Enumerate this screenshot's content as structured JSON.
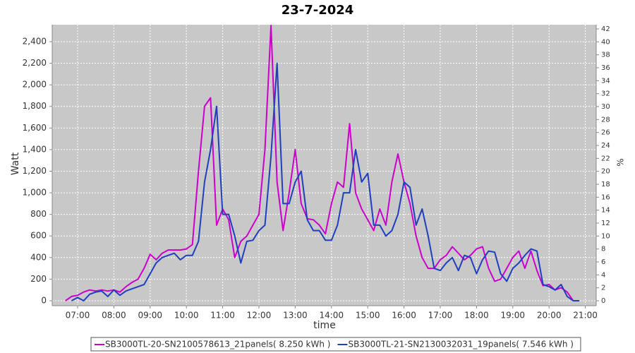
{
  "chart_data": {
    "type": "line",
    "title": "23-7-2024",
    "x_label": "time",
    "y_label": "Watt",
    "y2_label": "%",
    "x": [
      "06:40",
      "06:50",
      "07:00",
      "07:10",
      "07:20",
      "07:30",
      "07:40",
      "07:50",
      "08:00",
      "08:10",
      "08:20",
      "08:30",
      "08:40",
      "08:50",
      "09:00",
      "09:10",
      "09:20",
      "09:30",
      "09:40",
      "09:50",
      "10:00",
      "10:10",
      "10:20",
      "10:30",
      "10:40",
      "10:50",
      "11:00",
      "11:10",
      "11:20",
      "11:30",
      "11:40",
      "11:50",
      "12:00",
      "12:10",
      "12:20",
      "12:30",
      "12:40",
      "12:50",
      "13:00",
      "13:10",
      "13:20",
      "13:30",
      "13:40",
      "13:50",
      "14:00",
      "14:10",
      "14:20",
      "14:30",
      "14:40",
      "14:50",
      "15:00",
      "15:10",
      "15:20",
      "15:30",
      "15:40",
      "15:50",
      "16:00",
      "16:10",
      "16:20",
      "16:30",
      "16:40",
      "16:50",
      "17:00",
      "17:10",
      "17:20",
      "17:30",
      "17:40",
      "17:50",
      "18:00",
      "18:10",
      "18:20",
      "18:30",
      "18:40",
      "18:50",
      "19:00",
      "19:10",
      "19:20",
      "19:30",
      "19:40",
      "19:50",
      "20:00",
      "20:10",
      "20:20",
      "20:30",
      "20:40",
      "20:50"
    ],
    "series": [
      {
        "name": "SB3000TL-20-SN2100578613_21panels( 8.250 kWh )",
        "color": "#cc00cc",
        "values": [
          0,
          40,
          50,
          80,
          100,
          90,
          100,
          90,
          100,
          80,
          130,
          170,
          200,
          300,
          430,
          380,
          440,
          470,
          470,
          470,
          480,
          520,
          1200,
          1800,
          1880,
          700,
          850,
          750,
          400,
          550,
          600,
          700,
          800,
          1400,
          2550,
          1100,
          650,
          1000,
          1400,
          900,
          760,
          750,
          700,
          620,
          900,
          1100,
          1050,
          1640,
          1000,
          850,
          750,
          650,
          850,
          700,
          1100,
          1360,
          1100,
          900,
          600,
          400,
          300,
          300,
          380,
          420,
          500,
          440,
          380,
          420,
          480,
          500,
          300,
          180,
          200,
          300,
          400,
          460,
          300,
          460,
          280,
          140,
          150,
          100,
          120,
          80,
          0,
          null
        ]
      },
      {
        "name": "SB3000TL-21-SN2130032031_19panels( 7.546 kWh )",
        "color": "#1f3fbf",
        "values": [
          null,
          0,
          30,
          0,
          60,
          80,
          90,
          40,
          100,
          50,
          90,
          110,
          130,
          150,
          250,
          350,
          400,
          420,
          440,
          380,
          420,
          420,
          550,
          1100,
          1400,
          1800,
          800,
          800,
          600,
          350,
          550,
          560,
          650,
          700,
          1340,
          2200,
          900,
          900,
          1100,
          1200,
          750,
          650,
          650,
          560,
          560,
          700,
          1000,
          1000,
          1400,
          1100,
          1180,
          700,
          700,
          600,
          650,
          800,
          1100,
          1050,
          700,
          850,
          600,
          300,
          280,
          350,
          400,
          280,
          420,
          400,
          250,
          380,
          460,
          450,
          250,
          180,
          300,
          350,
          420,
          480,
          460,
          150,
          130,
          100,
          150,
          40,
          0,
          0
        ]
      }
    ],
    "xlim": [
      "06:18",
      "21:18"
    ],
    "xticks": [
      "07:00",
      "08:00",
      "09:00",
      "10:00",
      "11:00",
      "12:00",
      "13:00",
      "14:00",
      "15:00",
      "16:00",
      "17:00",
      "18:00",
      "19:00",
      "20:00",
      "21:00"
    ],
    "ylim": [
      -46,
      2557
    ],
    "yticks": [
      0,
      200,
      400,
      600,
      800,
      {
        "value": 1000,
        "label": "1,000"
      },
      {
        "value": 1200,
        "label": "1,200"
      },
      {
        "value": 1400,
        "label": "1,400"
      },
      {
        "value": 1600,
        "label": "1,600"
      },
      {
        "value": 1800,
        "label": "1,800"
      },
      {
        "value": 2000,
        "label": "2,000"
      },
      {
        "value": 2200,
        "label": "2,200"
      },
      {
        "value": 2400,
        "label": "2,400"
      }
    ],
    "y2lim": [
      -0.76,
      42.65
    ],
    "y2ticks": [
      0,
      2,
      4,
      6,
      8,
      10,
      12,
      14,
      16,
      18,
      20,
      22,
      24,
      26,
      28,
      30,
      32,
      34,
      36,
      38,
      40,
      42
    ],
    "grid": true,
    "legend": "bottom",
    "background": "#c8c8c8"
  }
}
